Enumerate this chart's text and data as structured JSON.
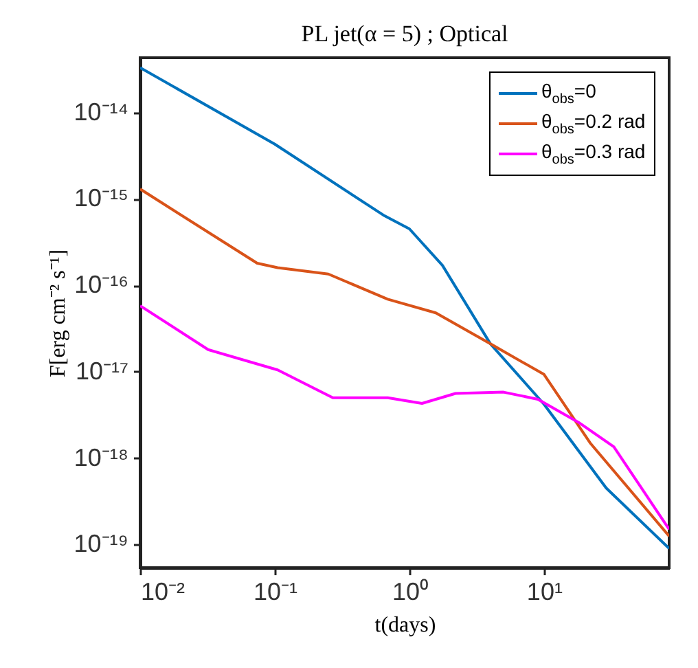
{
  "chart_data": {
    "type": "line",
    "title": "PL jet(α = 5) ; Optical",
    "xlabel": "t(days)",
    "ylabel": "F[erg cm⁻² s⁻¹]",
    "log": "xy",
    "grid": false,
    "legend": "top right",
    "line_style": "solid",
    "marker": "none",
    "xlim": [
      0.01,
      85
    ],
    "ylim": [
      5.4e-20,
      4.3e-14
    ],
    "xticks": [
      {
        "value": 0.01,
        "label": "10⁻²"
      },
      {
        "value": 0.1,
        "label": "10⁻¹"
      },
      {
        "value": 1,
        "label": "10⁰"
      },
      {
        "value": 10,
        "label": "10¹"
      }
    ],
    "yticks": [
      {
        "value": 1e-19,
        "label": "10⁻¹⁹"
      },
      {
        "value": 1e-18,
        "label": "10⁻¹⁸"
      },
      {
        "value": 1e-17,
        "label": "10⁻¹⁷"
      },
      {
        "value": 1e-16,
        "label": "10⁻¹⁶"
      },
      {
        "value": 1e-15,
        "label": "10⁻¹⁵"
      },
      {
        "value": 1e-14,
        "label": "10⁻¹⁴"
      }
    ],
    "series": [
      {
        "name": "θ$_{obs}$=0",
        "color": "#0072bd",
        "x": [
          0.01,
          0.1,
          0.64,
          1,
          1.76,
          4,
          10,
          29,
          85
        ],
        "values": [
          3.3e-14,
          4.3e-15,
          6.5e-16,
          4.5e-16,
          1.7e-16,
          2.1e-17,
          4.2e-18,
          4.5e-19,
          9e-20
        ]
      },
      {
        "name": "θ$_{obs}$=0.2 rad",
        "color": "#d95319",
        "x": [
          0.01,
          0.074,
          0.105,
          0.25,
          0.69,
          1.57,
          4,
          10,
          22,
          85
        ],
        "values": [
          1.3e-15,
          1.8e-16,
          1.6e-16,
          1.35e-16,
          6.9e-17,
          4.8e-17,
          2.1e-17,
          9.3e-18,
          1.5e-18,
          1.25e-19
        ]
      },
      {
        "name": "θ$_{obs}$=0.3 rad",
        "color": "#ff00ff",
        "x": [
          0.01,
          0.032,
          0.105,
          0.27,
          0.69,
          1.24,
          2.2,
          5,
          9,
          18,
          33,
          85
        ],
        "values": [
          5.8e-17,
          1.8e-17,
          1.05e-17,
          5e-18,
          5e-18,
          4.3e-18,
          5.6e-18,
          5.8e-18,
          4.8e-18,
          2.6e-18,
          1.35e-18,
          1.5e-19
        ]
      }
    ]
  }
}
